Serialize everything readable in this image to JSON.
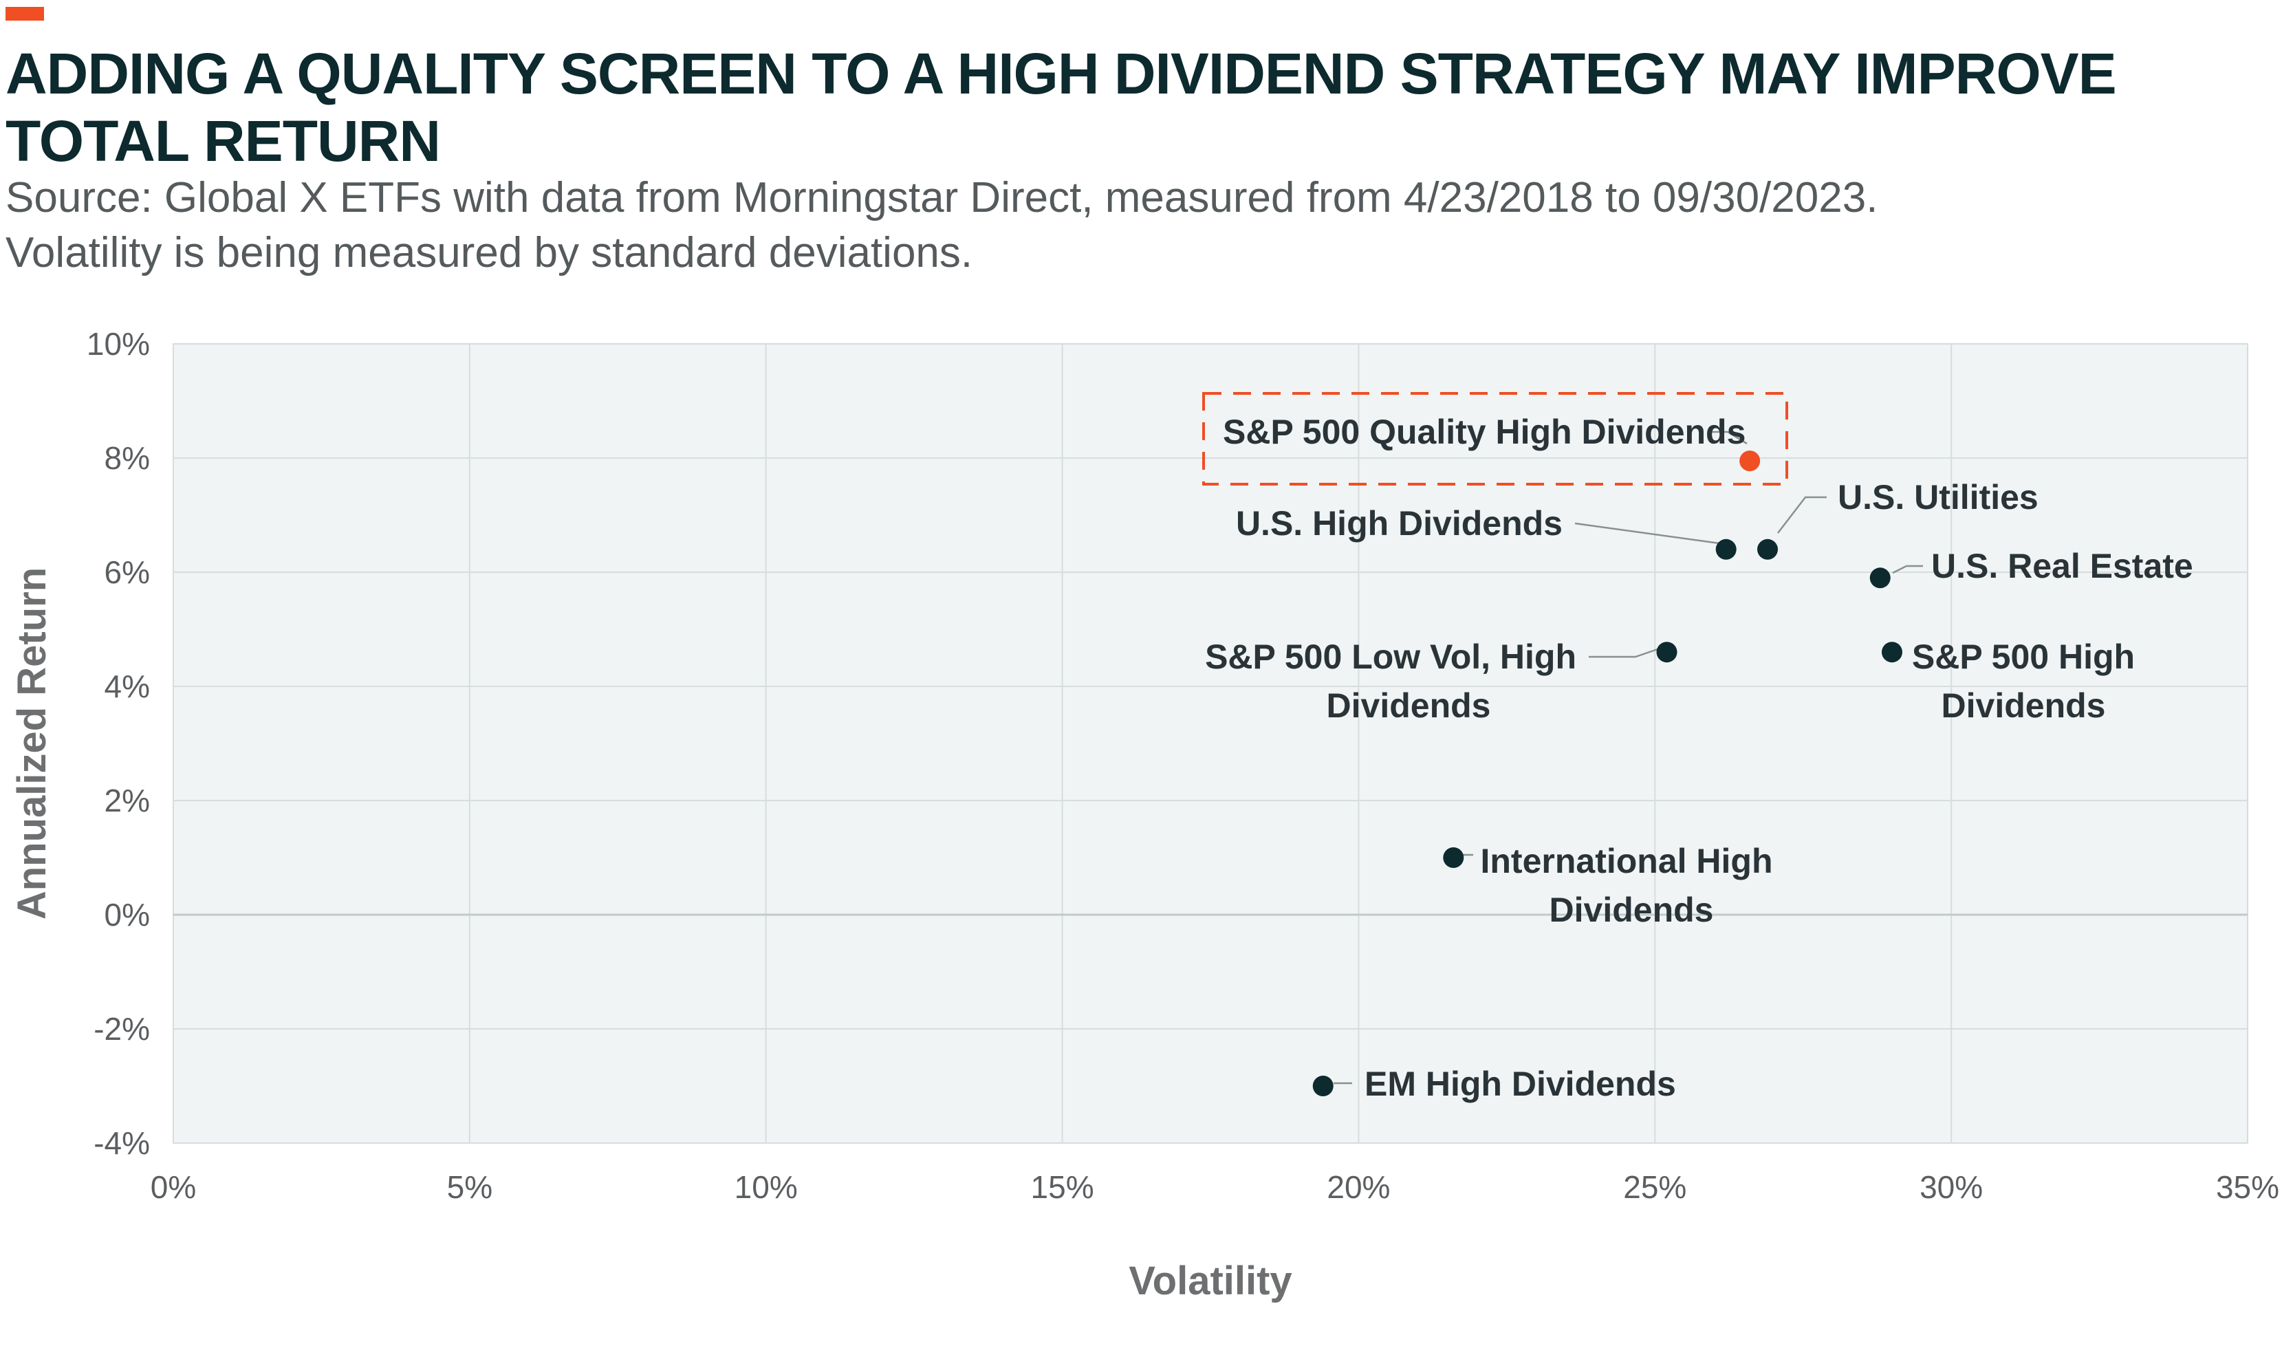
{
  "header": {
    "title": "ADDING A QUALITY SCREEN TO A HIGH DIVIDEND STRATEGY MAY IMPROVE TOTAL RETURN",
    "subtitle_line1": "Source: Global X ETFs with data from Morningstar Direct, measured from 4/23/2018 to 09/30/2023.",
    "subtitle_line2": "Volatility is being measured by standard deviations.",
    "accent_color": "#f04e23"
  },
  "chart_data": {
    "type": "scatter",
    "xlabel": "Volatility",
    "ylabel": "Annualized Return",
    "xlim": [
      0,
      35
    ],
    "ylim": [
      -4,
      10
    ],
    "x_ticks": [
      "0%",
      "5%",
      "10%",
      "15%",
      "20%",
      "25%",
      "30%",
      "35%"
    ],
    "y_ticks": [
      "10%",
      "8%",
      "6%",
      "4%",
      "2%",
      "0%",
      "-2%",
      "-4%"
    ],
    "grid": true,
    "highlight_color": "#f04e23",
    "point_color": "#0d2a2e",
    "points": [
      {
        "label": "S&P 500 Quality High Dividends",
        "x": 26.6,
        "y": 7.95,
        "highlight": true
      },
      {
        "label": "U.S. High Dividends",
        "x": 26.2,
        "y": 6.4
      },
      {
        "label": "U.S. Utilities",
        "x": 26.9,
        "y": 6.4
      },
      {
        "label": "U.S. Real Estate",
        "x": 28.8,
        "y": 5.9
      },
      {
        "label": "S&P 500 Low Vol, High Dividends",
        "x": 25.2,
        "y": 4.6
      },
      {
        "label": "S&P 500 High Dividends",
        "x": 29.0,
        "y": 4.6
      },
      {
        "label": "International High Dividends",
        "x": 21.6,
        "y": 1.0
      },
      {
        "label": "EM High Dividends",
        "x": 19.4,
        "y": -3.0
      }
    ]
  }
}
